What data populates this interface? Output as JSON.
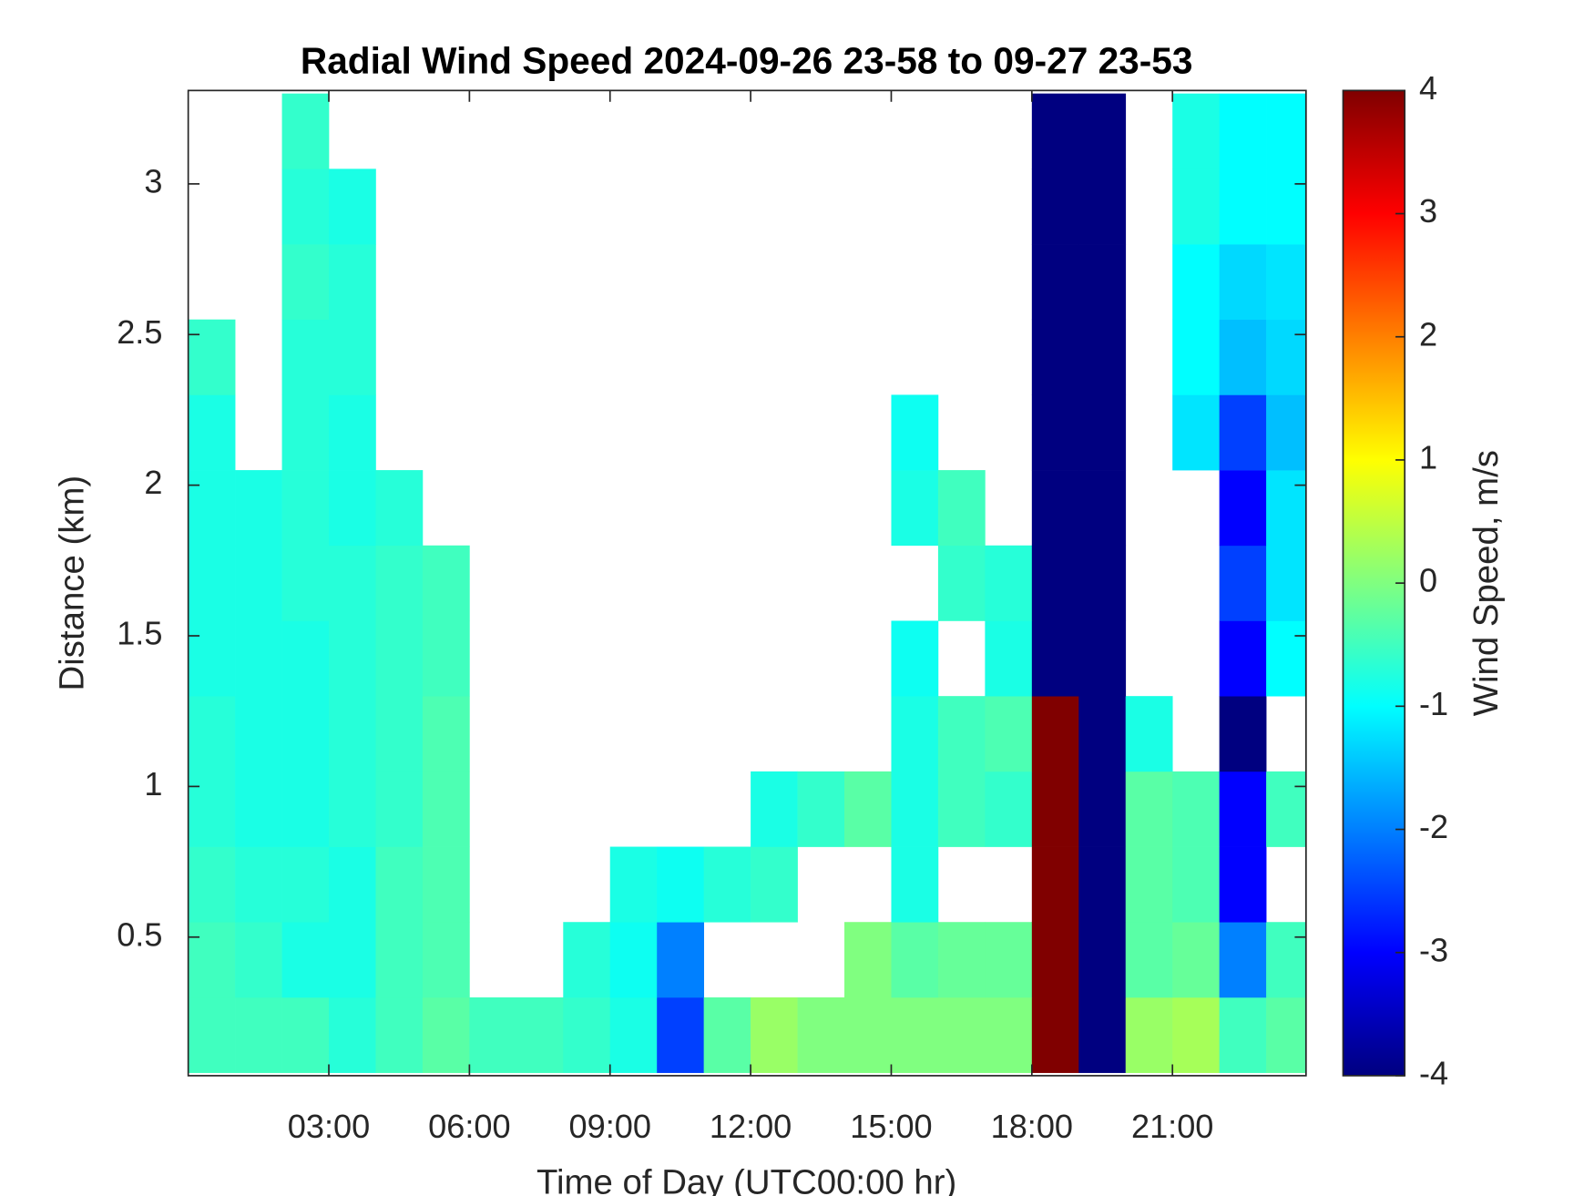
{
  "chart_data": {
    "type": "heatmap",
    "title": "Radial Wind Speed 2024-09-26 23-58 to 09-27 23-53",
    "x_label": "Time of Day (UTC00:00 hr)",
    "y_label": "Distance (km)",
    "colorbar_label": "Wind Speed, m/s",
    "colormap": "jet",
    "clim": [
      -4,
      4
    ],
    "cticks": [
      -4,
      -3,
      -2,
      -1,
      0,
      1,
      2,
      3,
      4
    ],
    "xlim": [
      0,
      23.85
    ],
    "ylim": [
      0.04,
      3.31
    ],
    "xticks": [
      {
        "value": 3,
        "label": "03:00"
      },
      {
        "value": 6,
        "label": "06:00"
      },
      {
        "value": 9,
        "label": "09:00"
      },
      {
        "value": 12,
        "label": "12:00"
      },
      {
        "value": 15,
        "label": "15:00"
      },
      {
        "value": 18,
        "label": "18:00"
      },
      {
        "value": 21,
        "label": "21:00"
      }
    ],
    "yticks": [
      0.5,
      1,
      1.5,
      2,
      2.5,
      3
    ],
    "x_edges": [
      0,
      1,
      2,
      3,
      4,
      5,
      6,
      7,
      8,
      9,
      10,
      11,
      12,
      13,
      14,
      15,
      16,
      17,
      18,
      19,
      20,
      21,
      22,
      23,
      23.85
    ],
    "y_edges": [
      0.05,
      0.3,
      0.55,
      0.8,
      1.05,
      1.3,
      1.55,
      1.8,
      2.05,
      2.3,
      2.55,
      2.8,
      3.05,
      3.3
    ],
    "values": [
      [
        -0.5,
        -0.5,
        -0.5,
        -0.7,
        -0.5,
        -0.3,
        -0.5,
        -0.5,
        -0.6,
        -0.8,
        -2.5,
        -0.3,
        0.2,
        0,
        0,
        0,
        0,
        0,
        4,
        -4,
        0.2,
        0.3,
        -0.5,
        -0.3
      ],
      [
        -0.5,
        -0.6,
        -0.8,
        -0.8,
        -0.5,
        -0.4,
        null,
        null,
        -0.7,
        -0.9,
        -2,
        null,
        null,
        null,
        0,
        -0.3,
        -0.2,
        -0.2,
        4,
        -4,
        -0.3,
        -0.2,
        -2,
        -0.5
      ],
      [
        -0.6,
        -0.7,
        -0.7,
        -0.8,
        -0.5,
        -0.4,
        null,
        null,
        null,
        -0.8,
        -0.9,
        -0.7,
        -0.6,
        null,
        null,
        -0.8,
        null,
        null,
        4,
        -4,
        -0.3,
        -0.4,
        -3,
        null
      ],
      [
        -0.7,
        -0.8,
        -0.8,
        -0.7,
        -0.6,
        -0.4,
        null,
        null,
        null,
        null,
        null,
        null,
        -0.8,
        -0.6,
        -0.3,
        -0.8,
        -0.5,
        -0.6,
        4,
        -4,
        -0.3,
        -0.4,
        -3,
        -0.5
      ],
      [
        -0.7,
        -0.8,
        -0.8,
        -0.7,
        -0.6,
        -0.4,
        null,
        null,
        null,
        null,
        null,
        null,
        null,
        null,
        null,
        -0.8,
        -0.5,
        -0.4,
        4,
        -4,
        -0.8,
        null,
        -4,
        null
      ],
      [
        -0.8,
        -0.8,
        -0.8,
        -0.7,
        -0.6,
        -0.5,
        null,
        null,
        null,
        null,
        null,
        null,
        null,
        null,
        null,
        -0.9,
        null,
        -0.8,
        -4,
        -4,
        null,
        null,
        -3,
        -1
      ],
      [
        -0.8,
        -0.8,
        -0.7,
        -0.7,
        -0.6,
        -0.5,
        null,
        null,
        null,
        null,
        null,
        null,
        null,
        null,
        null,
        null,
        -0.6,
        -0.7,
        -4,
        -4,
        null,
        null,
        -2.5,
        -1.2
      ],
      [
        -0.8,
        -0.8,
        -0.7,
        -0.8,
        -0.7,
        null,
        null,
        null,
        null,
        null,
        null,
        null,
        null,
        null,
        null,
        -0.8,
        -0.5,
        null,
        -4,
        -4,
        null,
        null,
        -3,
        -1.2
      ],
      [
        -0.8,
        null,
        -0.7,
        -0.8,
        null,
        null,
        null,
        null,
        null,
        null,
        null,
        null,
        null,
        null,
        null,
        -0.9,
        null,
        null,
        -4,
        -4,
        null,
        -1.2,
        -2.5,
        -1.5
      ],
      [
        -0.6,
        null,
        -0.7,
        -0.7,
        null,
        null,
        null,
        null,
        null,
        null,
        null,
        null,
        null,
        null,
        null,
        null,
        null,
        null,
        -4,
        -4,
        null,
        -1,
        -1.5,
        -1.3
      ],
      [
        null,
        null,
        -0.6,
        -0.7,
        null,
        null,
        null,
        null,
        null,
        null,
        null,
        null,
        null,
        null,
        null,
        null,
        null,
        null,
        -4,
        -4,
        null,
        -1,
        -1.3,
        -1.2
      ],
      [
        null,
        null,
        -0.7,
        -0.8,
        null,
        null,
        null,
        null,
        null,
        null,
        null,
        null,
        null,
        null,
        null,
        null,
        null,
        null,
        -4,
        -4,
        null,
        -0.8,
        -1,
        -1
      ],
      [
        null,
        null,
        -0.6,
        null,
        null,
        null,
        null,
        null,
        null,
        null,
        null,
        null,
        null,
        null,
        null,
        null,
        null,
        null,
        -4,
        -4,
        null,
        -0.8,
        -1,
        -1
      ]
    ]
  }
}
